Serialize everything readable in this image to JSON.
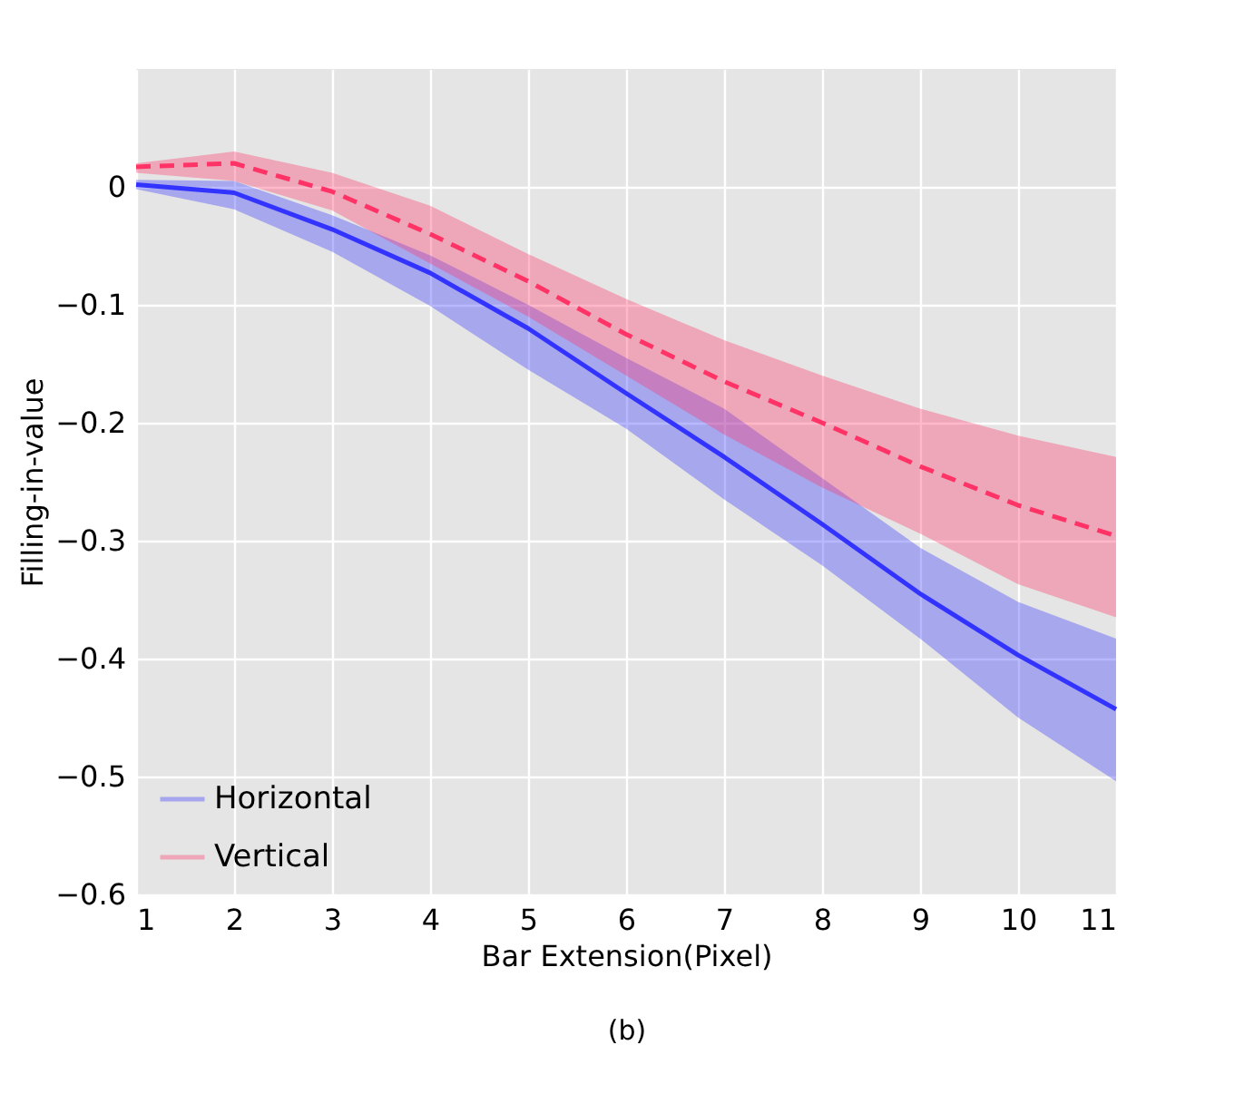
{
  "chart_data": {
    "type": "line",
    "xlabel": "Bar Extension(Pixel)",
    "ylabel": "Filling-in-value",
    "x": [
      1,
      2,
      3,
      4,
      5,
      6,
      7,
      8,
      9,
      10,
      11
    ],
    "series": [
      {
        "name": "Horizontal",
        "color": "#3333ff",
        "line_style": "solid",
        "values": [
          0.002,
          -0.005,
          -0.036,
          -0.073,
          -0.12,
          -0.175,
          -0.229,
          -0.286,
          -0.345,
          -0.397,
          -0.443
        ],
        "lower": [
          -0.002,
          -0.019,
          -0.055,
          -0.101,
          -0.155,
          -0.205,
          -0.265,
          -0.321,
          -0.383,
          -0.45,
          -0.504
        ],
        "upper": [
          0.006,
          0.005,
          -0.024,
          -0.058,
          -0.1,
          -0.145,
          -0.188,
          -0.247,
          -0.306,
          -0.352,
          -0.383
        ]
      },
      {
        "name": "Vertical",
        "color": "#ff3366",
        "line_style": "dashed",
        "values": [
          0.017,
          0.02,
          -0.004,
          -0.04,
          -0.08,
          -0.125,
          -0.165,
          -0.2,
          -0.237,
          -0.27,
          -0.296
        ],
        "lower": [
          0.012,
          0.005,
          -0.02,
          -0.065,
          -0.11,
          -0.16,
          -0.21,
          -0.255,
          -0.294,
          -0.337,
          -0.365
        ],
        "upper": [
          0.02,
          0.03,
          0.012,
          -0.016,
          -0.057,
          -0.095,
          -0.13,
          -0.16,
          -0.188,
          -0.211,
          -0.229
        ]
      }
    ],
    "xlim": [
      1,
      11
    ],
    "ylim": [
      -0.6,
      0.1
    ],
    "xticks": [
      1,
      2,
      3,
      4,
      5,
      6,
      7,
      8,
      9,
      10,
      11
    ],
    "yticks": [
      {
        "value": -0.6,
        "label": "−0.6"
      },
      {
        "value": -0.5,
        "label": "−0.5"
      },
      {
        "value": -0.4,
        "label": "−0.4"
      },
      {
        "value": -0.3,
        "label": "−0.3"
      },
      {
        "value": -0.2,
        "label": "−0.2"
      },
      {
        "value": -0.1,
        "label": "−0.1"
      },
      0
    ],
    "grid": true,
    "legend": "bottom left",
    "marker": "none",
    "annotations": [
      "(b)"
    ]
  }
}
